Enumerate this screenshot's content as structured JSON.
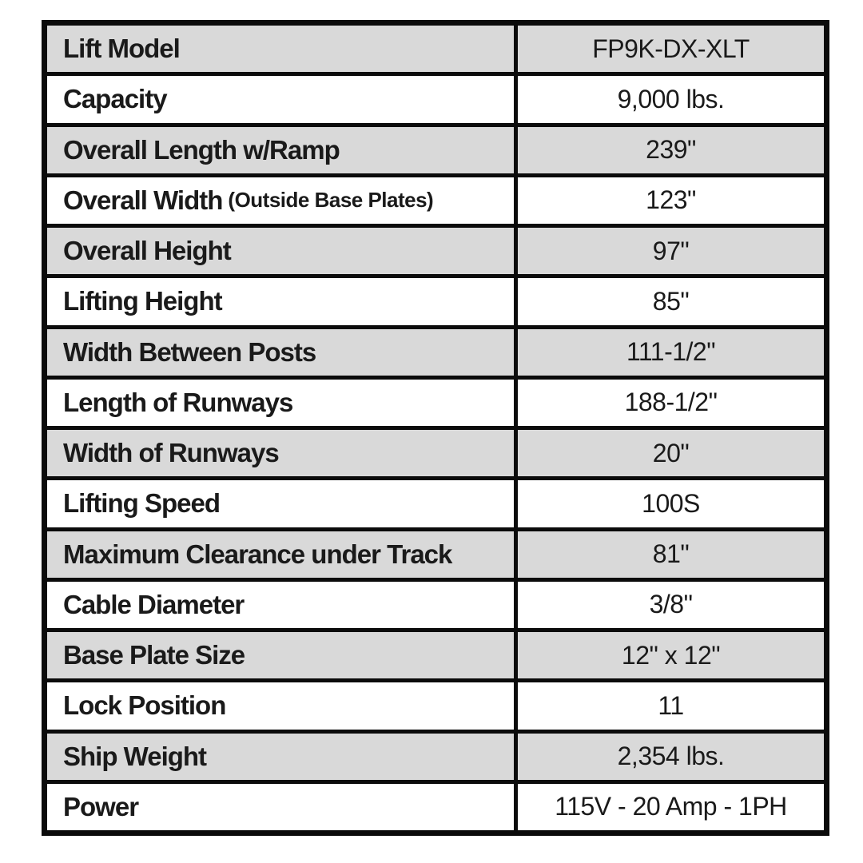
{
  "page": {
    "background_color": "#ffffff",
    "row_alt_color": "#d9d9d9",
    "border_color": "#0b0b0b",
    "text_color": "#1a1a1a"
  },
  "table": {
    "columns": [
      "specification",
      "value"
    ],
    "rows": [
      {
        "label": "Lift Model",
        "value": "FP9K-DX-XLT"
      },
      {
        "label": "Capacity",
        "value": "9,000 lbs."
      },
      {
        "label": "Overall Length w/Ramp",
        "value": "239\""
      },
      {
        "label": "Overall Width",
        "note": "(Outside Base Plates)",
        "value": "123\""
      },
      {
        "label": "Overall Height",
        "value": "97\""
      },
      {
        "label": "Lifting Height",
        "value": "85\""
      },
      {
        "label": "Width Between Posts",
        "value": "111-1/2\""
      },
      {
        "label": "Length of Runways",
        "value": "188-1/2\""
      },
      {
        "label": "Width of Runways",
        "value": "20\""
      },
      {
        "label": "Lifting Speed",
        "value": "100S"
      },
      {
        "label": "Maximum Clearance under Track",
        "value": "81\""
      },
      {
        "label": "Cable Diameter",
        "value": "3/8\""
      },
      {
        "label": "Base Plate Size",
        "value": "12\" x 12\""
      },
      {
        "label": "Lock Position",
        "value": "11"
      },
      {
        "label": "Ship Weight",
        "value": "2,354 lbs."
      },
      {
        "label": "Power",
        "value": "115V - 20 Amp - 1PH"
      }
    ]
  }
}
